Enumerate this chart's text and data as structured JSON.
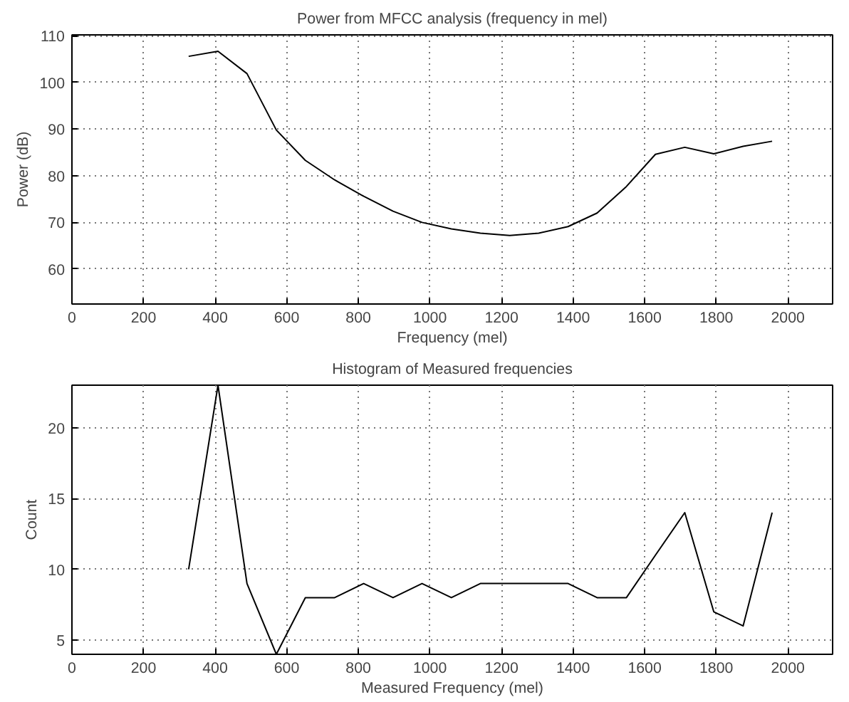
{
  "chart_data": [
    {
      "type": "line",
      "title": "Power from MFCC analysis (frequency in mel)",
      "xlabel": "Frequency (mel)",
      "ylabel": "Power (dB)",
      "x": [
        326,
        408,
        489,
        571,
        652,
        734,
        815,
        897,
        978,
        1060,
        1141,
        1223,
        1304,
        1386,
        1467,
        1549,
        1630,
        1712,
        1793,
        1875,
        1956
      ],
      "series": [
        {
          "color": "#000000",
          "values": [
            105.6,
            106.7,
            101.9,
            89.8,
            83.3,
            79.1,
            75.6,
            72.4,
            70,
            68.6,
            67.7,
            67.2,
            67.7,
            69.1,
            72,
            77.7,
            84.6,
            86.1,
            84.7,
            86.3,
            87.4
          ]
        }
      ],
      "xlim": [
        0,
        2125
      ],
      "ylim": [
        52.5,
        110.2
      ],
      "xticks": [
        0,
        200,
        400,
        600,
        800,
        1000,
        1200,
        1400,
        1600,
        1800,
        2000
      ],
      "yticks": [
        60,
        70,
        80,
        90,
        100,
        110
      ],
      "grid": true,
      "line_style": "solid"
    },
    {
      "type": "line",
      "title": "Histogram of Measured frequencies",
      "xlabel": "Measured Frequency (mel)",
      "ylabel": "Count",
      "x": [
        326,
        408,
        489,
        571,
        652,
        734,
        815,
        897,
        978,
        1060,
        1141,
        1223,
        1304,
        1386,
        1467,
        1549,
        1630,
        1712,
        1793,
        1875,
        1956
      ],
      "series": [
        {
          "color": "#000000",
          "values": [
            10,
            23,
            9,
            4,
            8,
            8,
            9,
            8,
            9,
            8,
            9,
            9,
            9,
            9,
            8,
            8,
            11,
            14,
            7,
            6,
            14
          ]
        }
      ],
      "xlim": [
        0,
        2125
      ],
      "ylim": [
        4,
        23
      ],
      "xticks": [
        0,
        200,
        400,
        600,
        800,
        1000,
        1200,
        1400,
        1600,
        1800,
        2000
      ],
      "yticks": [
        5,
        10,
        15,
        20
      ],
      "grid": true,
      "line_style": "solid"
    }
  ]
}
